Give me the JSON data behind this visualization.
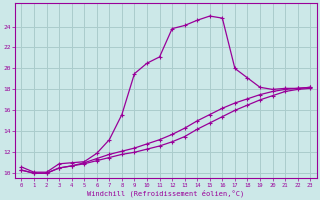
{
  "xlabel": "Windchill (Refroidissement éolien,°C)",
  "background_color": "#cce8e8",
  "grid_color": "#aacccc",
  "line_color": "#990099",
  "xlim": [
    -0.5,
    23.5
  ],
  "ylim": [
    9.5,
    26.2
  ],
  "xticks": [
    0,
    1,
    2,
    3,
    4,
    5,
    6,
    7,
    8,
    9,
    10,
    11,
    12,
    13,
    14,
    15,
    16,
    17,
    18,
    19,
    20,
    21,
    22,
    23
  ],
  "yticks": [
    10,
    12,
    14,
    16,
    18,
    20,
    22,
    24
  ],
  "curve1_x": [
    0,
    1,
    2,
    3,
    4,
    5,
    6,
    7,
    8,
    9,
    10,
    11,
    12,
    13,
    14,
    15,
    16,
    17,
    18,
    19,
    20,
    21,
    22,
    23
  ],
  "curve1_y": [
    10.6,
    10.1,
    10.1,
    10.9,
    11.0,
    11.1,
    11.9,
    13.2,
    15.6,
    19.5,
    20.5,
    21.1,
    23.8,
    24.1,
    24.6,
    25.0,
    24.8,
    20.0,
    19.1,
    18.2,
    18.0,
    18.1,
    18.1,
    18.2
  ],
  "curve2_x": [
    0,
    1,
    2,
    3,
    4,
    5,
    6,
    7,
    8,
    9,
    10,
    11,
    12,
    13,
    14,
    15,
    16,
    17,
    18,
    19,
    20,
    21,
    22,
    23
  ],
  "curve2_y": [
    10.3,
    10.0,
    10.0,
    10.5,
    10.7,
    10.9,
    11.2,
    11.5,
    11.8,
    12.0,
    12.3,
    12.6,
    13.0,
    13.5,
    14.2,
    14.8,
    15.4,
    16.0,
    16.5,
    17.0,
    17.4,
    17.8,
    18.0,
    18.1
  ],
  "curve3_x": [
    0,
    1,
    2,
    3,
    4,
    5,
    6,
    7,
    8,
    9,
    10,
    11,
    12,
    13,
    14,
    15,
    16,
    17,
    18,
    19,
    20,
    21,
    22,
    23
  ],
  "curve3_y": [
    10.3,
    10.0,
    10.0,
    10.5,
    10.7,
    11.0,
    11.4,
    11.8,
    12.1,
    12.4,
    12.8,
    13.2,
    13.7,
    14.3,
    15.0,
    15.6,
    16.2,
    16.7,
    17.1,
    17.5,
    17.8,
    18.0,
    18.1,
    18.2
  ]
}
